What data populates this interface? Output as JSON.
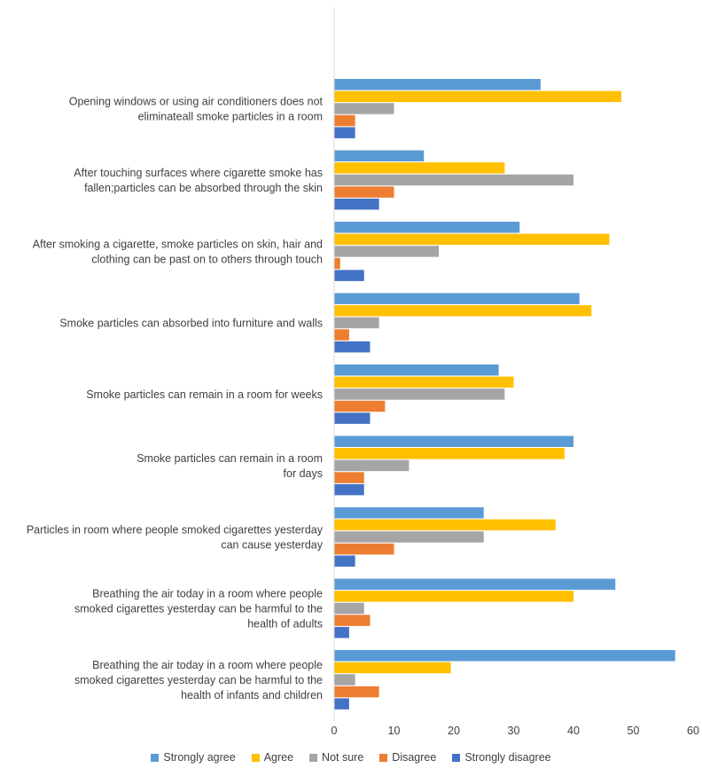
{
  "chart_data": {
    "type": "bar",
    "orientation": "horizontal",
    "title": "",
    "xlabel": "",
    "ylabel": "",
    "xlim": [
      0,
      60
    ],
    "xticks": [
      0,
      10,
      20,
      30,
      40,
      50,
      60
    ],
    "grid": false,
    "legend_position": "bottom",
    "categories": [
      [
        "Opening windows or using air conditioners does not",
        "eliminateall smoke particles in a room"
      ],
      [
        "After touching surfaces where cigarette smoke has",
        "fallen;particles can be absorbed through the skin"
      ],
      [
        "After smoking a cigarette, smoke particles on skin, hair and",
        "clothing can be past on to others through touch"
      ],
      [
        "Smoke particles can absorbed into furniture and walls"
      ],
      [
        "Smoke particles can remain in a room for weeks"
      ],
      [
        "Smoke particles can remain in a room",
        "for days"
      ],
      [
        "Particles in room where people smoked cigarettes yesterday",
        "can cause yesterday"
      ],
      [
        "Breathing the air today in a room where people",
        "smoked cigarettes yesterday can be harmful to the",
        "health of adults"
      ],
      [
        "Breathing the air today in a room where people",
        "smoked cigarettes yesterday can be harmful to the",
        "health of infants and children"
      ]
    ],
    "series": [
      {
        "name": "Strongly agree",
        "color": "#5B9BD5",
        "values": [
          34.5,
          15,
          31,
          41,
          27.5,
          40,
          25,
          47,
          57
        ]
      },
      {
        "name": "Agree",
        "color": "#FFC000",
        "values": [
          48,
          28.5,
          46,
          43,
          30,
          38.5,
          37,
          40,
          19.5
        ]
      },
      {
        "name": "Not sure",
        "color": "#A5A5A5",
        "values": [
          10,
          40,
          17.5,
          7.5,
          28.5,
          12.5,
          25,
          5,
          3.5
        ]
      },
      {
        "name": "Disagree",
        "color": "#ED7D31",
        "values": [
          3.5,
          10,
          1,
          2.5,
          8.5,
          5,
          10,
          6,
          7.5
        ]
      },
      {
        "name": "Strongly disagree",
        "color": "#4472C4",
        "values": [
          3.5,
          7.5,
          5,
          6,
          6,
          5,
          3.5,
          2.5,
          2.5
        ]
      }
    ]
  }
}
